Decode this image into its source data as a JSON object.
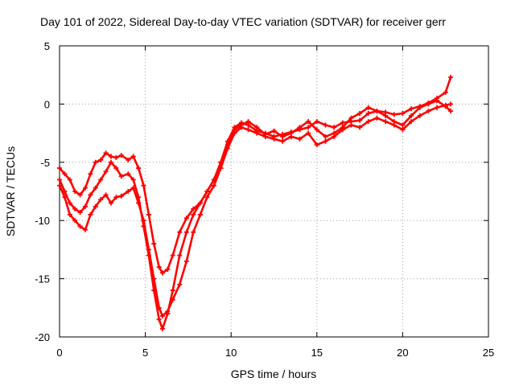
{
  "chart_data": {
    "type": "line",
    "title": "Day 101 of 2022, Sidereal Day-to-day VTEC variation (SDTVAR) for receiver gerr",
    "xlabel": "GPS time / hours",
    "ylabel": "SDTVAR / TECUs",
    "xlim": [
      0,
      25
    ],
    "ylim": [
      -20,
      5
    ],
    "xticks": [
      "0",
      "5",
      "10",
      "15",
      "20",
      "25"
    ],
    "yticks": [
      "5",
      "0",
      "-5",
      "-10",
      "-15",
      "-20"
    ],
    "grid": true,
    "marker": "plus",
    "color": "#ff0000",
    "series": [
      {
        "x": [
          0,
          0.3,
          0.6,
          0.9,
          1.2,
          1.5,
          1.8,
          2.1,
          2.4,
          2.7,
          3.0,
          3.3,
          3.6,
          4.0,
          4.3,
          4.6,
          4.9,
          5.2,
          5.5,
          5.8,
          6.0,
          6.3,
          6.6,
          7.0,
          7.4,
          7.8,
          8.2,
          8.6,
          9.0,
          9.4,
          9.8,
          10.2,
          10.6,
          11.0,
          11.5,
          12.0,
          12.5,
          13.0,
          13.5,
          14.0,
          14.5,
          15.0,
          15.5,
          16.0,
          16.5,
          17.0,
          17.5,
          18.0,
          18.5,
          19.0,
          19.5,
          20.0,
          20.5,
          21.0,
          21.5,
          22.0,
          22.5,
          22.8
        ],
        "values": [
          -6.5,
          -7.5,
          -8.5,
          -9.0,
          -9.3,
          -8.8,
          -7.8,
          -7.2,
          -6.5,
          -5.8,
          -5.0,
          -5.5,
          -6.2,
          -6.0,
          -6.5,
          -8.0,
          -10.5,
          -13.0,
          -16.0,
          -18.5,
          -19.3,
          -18.0,
          -16.0,
          -13.0,
          -11.0,
          -9.5,
          -8.5,
          -7.5,
          -6.5,
          -5.0,
          -3.2,
          -2.0,
          -1.6,
          -1.8,
          -2.3,
          -2.5,
          -2.8,
          -2.6,
          -2.4,
          -2.2,
          -2.0,
          -1.5,
          -1.8,
          -2.0,
          -1.6,
          -1.5,
          -1.4,
          -0.8,
          -0.6,
          -0.7,
          -0.9,
          -0.8,
          -0.4,
          -0.2,
          0.1,
          0.5,
          1.0,
          2.3
        ]
      },
      {
        "x": [
          0,
          0.3,
          0.6,
          0.9,
          1.2,
          1.5,
          1.8,
          2.1,
          2.4,
          2.7,
          3.0,
          3.3,
          3.6,
          4.0,
          4.3,
          4.6,
          4.9,
          5.2,
          5.5,
          5.8,
          6.0,
          6.3,
          6.6,
          7.0,
          7.4,
          7.8,
          8.2,
          8.6,
          9.0,
          9.4,
          9.8,
          10.2,
          10.6,
          11.0,
          11.5,
          12.0,
          12.5,
          13.0,
          13.5,
          14.0,
          14.5,
          15.0,
          15.5,
          16.0,
          16.5,
          17.0,
          17.5,
          18.0,
          18.5,
          19.0,
          19.5,
          20.0,
          20.5,
          21.0,
          21.5,
          22.0,
          22.5,
          22.8
        ],
        "values": [
          -5.5,
          -6.0,
          -6.5,
          -7.5,
          -7.8,
          -7.2,
          -6.0,
          -5.0,
          -4.8,
          -4.2,
          -4.5,
          -4.6,
          -4.4,
          -4.8,
          -4.5,
          -5.5,
          -7.0,
          -9.5,
          -12.0,
          -14.0,
          -14.5,
          -14.2,
          -13.0,
          -11.0,
          -9.8,
          -9.0,
          -8.5,
          -7.5,
          -6.5,
          -5.0,
          -3.5,
          -2.2,
          -1.8,
          -1.5,
          -2.0,
          -2.6,
          -2.3,
          -2.8,
          -2.5,
          -2.0,
          -1.5,
          -2.2,
          -2.8,
          -2.5,
          -2.0,
          -1.2,
          -0.8,
          -0.3,
          -0.6,
          -1.0,
          -1.5,
          -1.8,
          -1.0,
          -0.3,
          0.0,
          0.3,
          -0.2,
          -0.6
        ]
      },
      {
        "x": [
          0,
          0.3,
          0.6,
          0.9,
          1.2,
          1.5,
          1.8,
          2.1,
          2.4,
          2.7,
          3.0,
          3.3,
          3.6,
          4.0,
          4.3,
          4.6,
          4.9,
          5.2,
          5.5,
          5.8,
          6.0,
          6.3,
          6.6,
          7.0,
          7.4,
          7.8,
          8.2,
          8.6,
          9.0,
          9.4,
          9.8,
          10.2,
          10.6,
          11.0,
          11.5,
          12.0,
          12.5,
          13.0,
          13.5,
          14.0,
          14.5,
          15.0,
          15.5,
          16.0,
          16.5,
          17.0,
          17.5,
          18.0,
          18.5,
          19.0,
          19.5,
          20.0,
          20.5,
          21.0,
          21.5,
          22.0,
          22.5,
          22.8
        ],
        "values": [
          -7.0,
          -8.0,
          -9.5,
          -10.0,
          -10.5,
          -10.8,
          -9.5,
          -8.8,
          -8.2,
          -7.8,
          -8.5,
          -8.0,
          -7.9,
          -7.5,
          -7.2,
          -8.5,
          -10.0,
          -12.5,
          -15.0,
          -17.5,
          -18.2,
          -17.8,
          -16.8,
          -15.5,
          -13.5,
          -11.0,
          -9.5,
          -8.0,
          -7.0,
          -5.5,
          -3.8,
          -2.5,
          -2.0,
          -2.2,
          -2.5,
          -2.8,
          -3.0,
          -3.2,
          -2.8,
          -3.0,
          -2.5,
          -3.5,
          -3.2,
          -2.8,
          -2.2,
          -1.8,
          -2.0,
          -1.5,
          -1.2,
          -1.5,
          -1.8,
          -2.2,
          -1.5,
          -1.0,
          -0.6,
          -0.3,
          -0.1,
          0.0
        ]
      }
    ]
  }
}
